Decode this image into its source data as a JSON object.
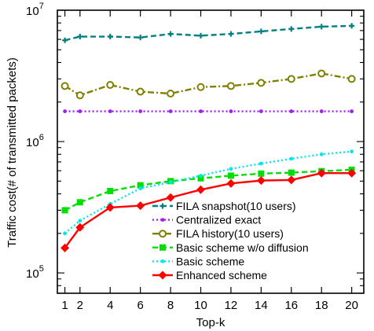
{
  "chart_data": {
    "type": "line",
    "title": "",
    "xlabel": "Top-k",
    "ylabel": "Traffic cost(# of transmitted packets)",
    "yscale": "log",
    "xlim": [
      0.5,
      20.8
    ],
    "ylim": [
      70000,
      10000000
    ],
    "x_ticks": [
      1,
      2,
      4,
      6,
      8,
      10,
      12,
      14,
      16,
      18,
      20
    ],
    "x_tick_labels": [
      "1",
      "2",
      "4",
      "6",
      "8",
      "10",
      "12",
      "14",
      "16",
      "18",
      "20"
    ],
    "y_major_ticks": [
      100000,
      1000000,
      10000000
    ],
    "y_tick_labels": [
      {
        "base": "10",
        "exp": "5"
      },
      {
        "base": "10",
        "exp": "6"
      },
      {
        "base": "10",
        "exp": "7"
      }
    ],
    "grid": false,
    "legend_position": "bottom-right",
    "x": [
      1,
      2,
      4,
      6,
      8,
      10,
      12,
      14,
      16,
      18,
      20
    ],
    "series": [
      {
        "name": "FILA snapshot(10 users)",
        "color": "#008080",
        "dash": "dashed",
        "marker": "plus",
        "values": [
          5900000,
          6300000,
          6300000,
          6200000,
          6600000,
          6400000,
          6600000,
          6900000,
          7200000,
          7500000,
          7600000
        ]
      },
      {
        "name": "Centralized exact",
        "color": "#a020f0",
        "dash": "dotted",
        "marker": "dot",
        "values": [
          1700000,
          1700000,
          1700000,
          1700000,
          1700000,
          1700000,
          1700000,
          1700000,
          1700000,
          1700000,
          1700000
        ]
      },
      {
        "name": "FILA history(10 users)",
        "color": "#808000",
        "dash": "dashdot",
        "marker": "circle",
        "values": [
          2650000,
          2250000,
          2700000,
          2400000,
          2320000,
          2600000,
          2650000,
          2800000,
          3000000,
          3300000,
          3000000
        ]
      },
      {
        "name": "Basic scheme w/o diffusion",
        "color": "#00e000",
        "dash": "dashed",
        "marker": "square",
        "values": [
          300000,
          345000,
          420000,
          465000,
          500000,
          525000,
          550000,
          570000,
          580000,
          595000,
          610000
        ]
      },
      {
        "name": "Basic scheme",
        "color": "#00e5ee",
        "dash": "dotted",
        "marker": "dot",
        "values": [
          200000,
          250000,
          335000,
          440000,
          490000,
          550000,
          620000,
          680000,
          740000,
          800000,
          840000
        ]
      },
      {
        "name": "Enhanced scheme",
        "color": "#ff0000",
        "dash": "solid",
        "marker": "diamond",
        "values": [
          155000,
          222000,
          315000,
          325000,
          375000,
          430000,
          480000,
          505000,
          510000,
          575000,
          575000
        ]
      }
    ]
  }
}
